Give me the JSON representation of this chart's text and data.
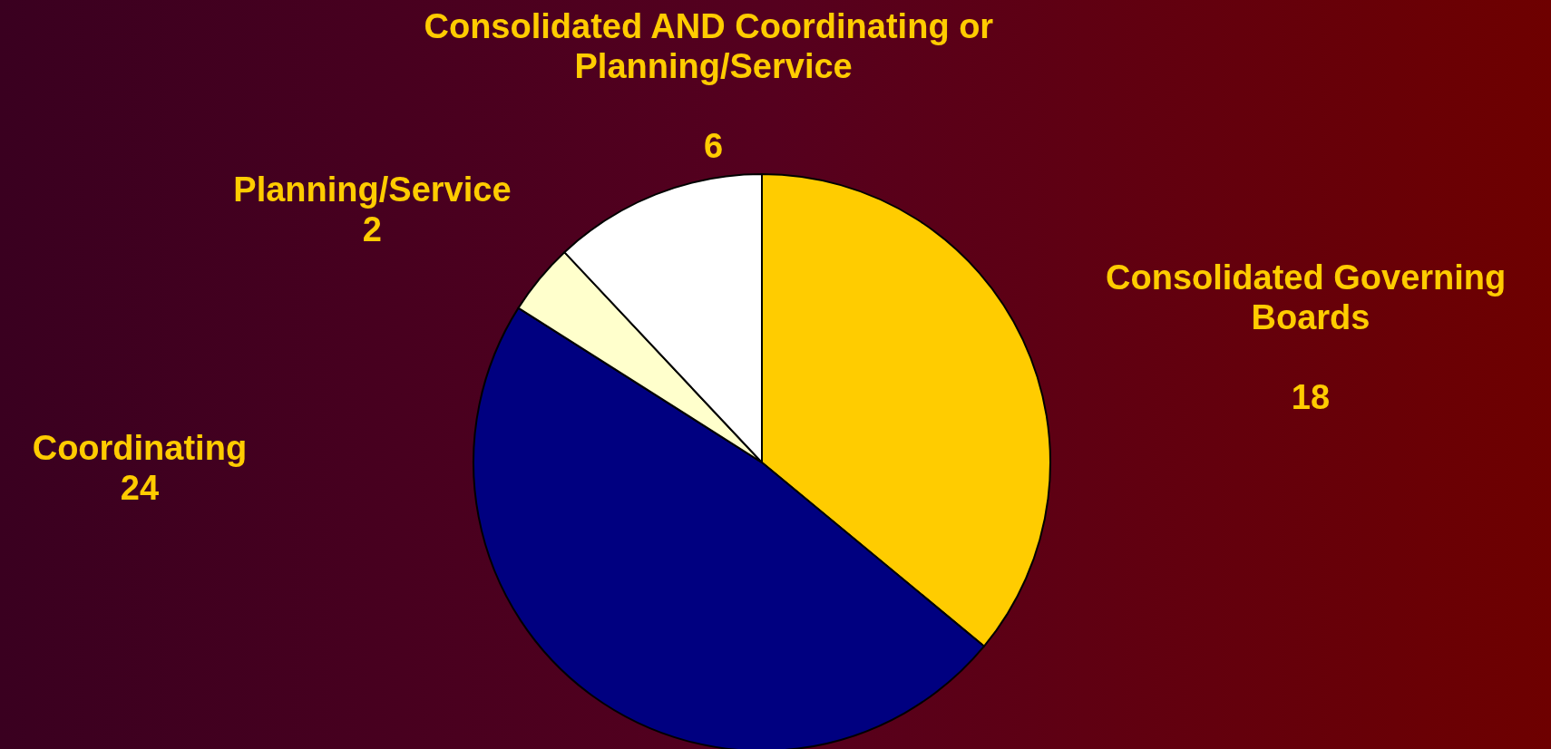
{
  "chart_data": {
    "type": "pie",
    "categories": [
      "Consolidated Governing Boards",
      "Coordinating",
      "Planning/Service",
      "Consolidated AND Coordinating or Planning/Service"
    ],
    "values": [
      18,
      24,
      2,
      6
    ],
    "colors": [
      "#ffcc00",
      "#000080",
      "#ffffcc",
      "#ffffff"
    ],
    "data_labels": true,
    "legend": false
  }
}
